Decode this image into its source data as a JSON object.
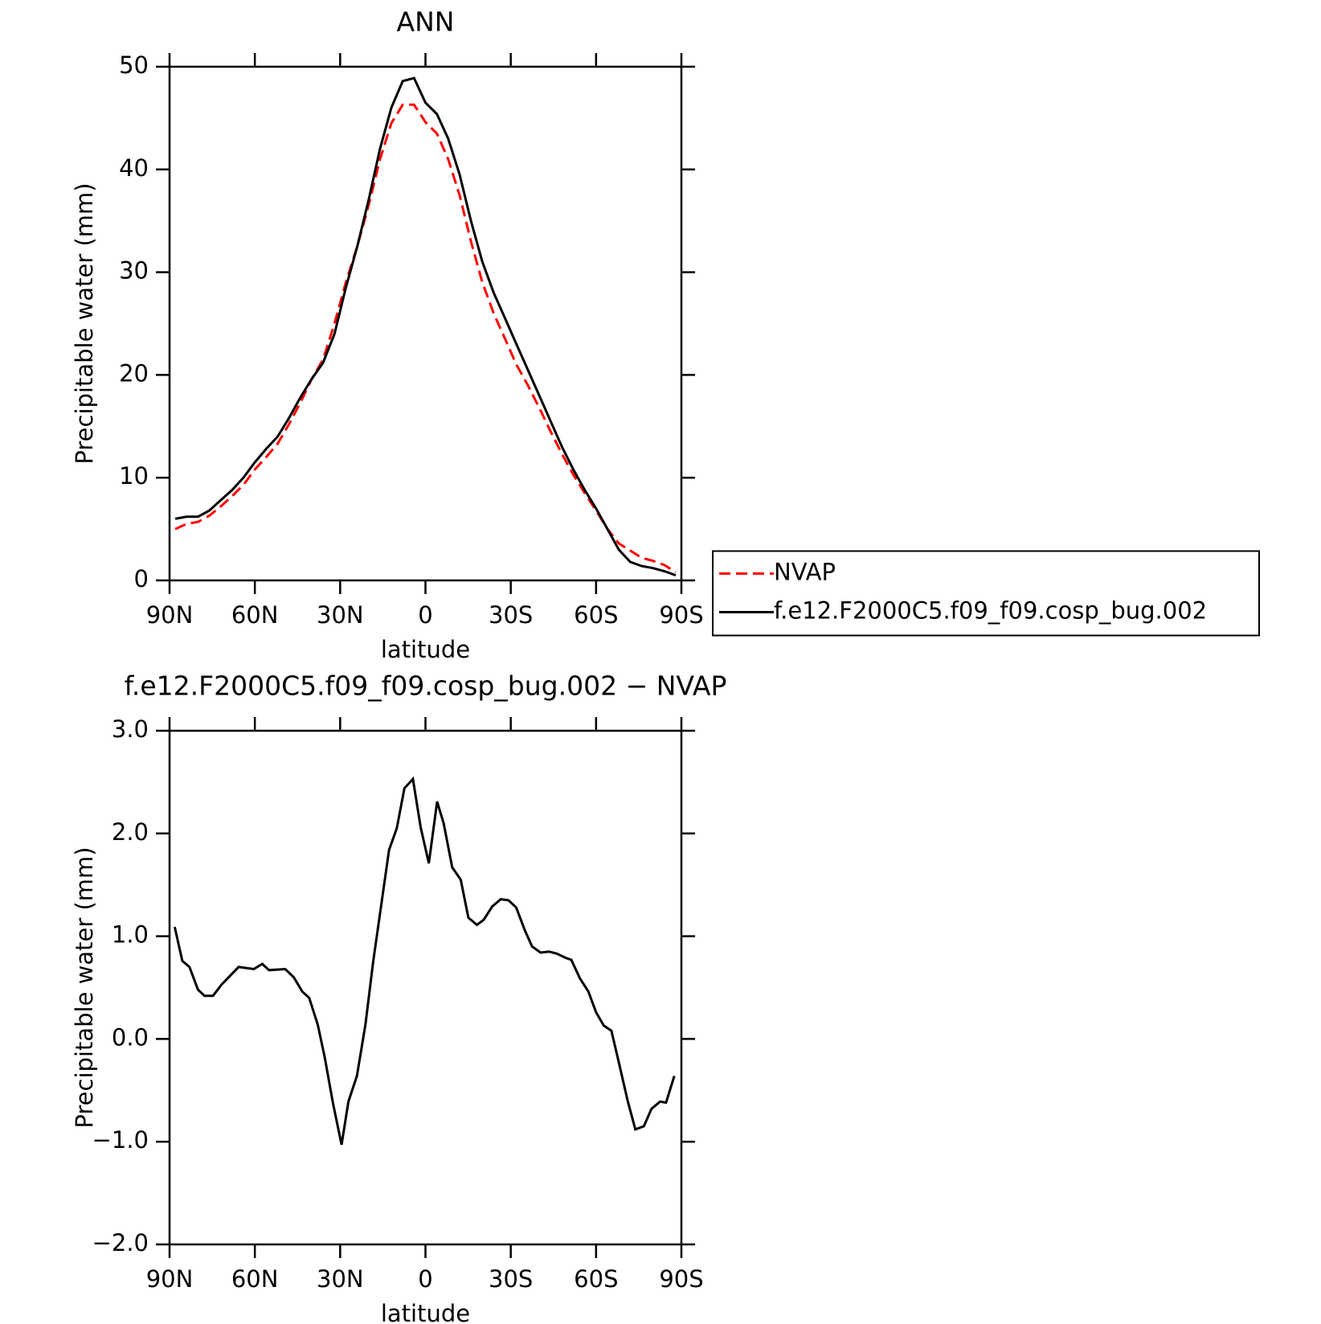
{
  "chart_data": [
    {
      "type": "line",
      "title": "ANN",
      "xlabel": "latitude",
      "ylabel": "Precipitable water (mm)",
      "x": [
        88,
        84,
        80,
        76,
        72,
        68,
        64,
        60,
        56,
        52,
        48,
        44,
        40,
        36,
        32,
        28,
        24,
        20,
        16,
        12,
        8,
        4,
        0,
        -4,
        -8,
        -12,
        -16,
        -20,
        -24,
        -28,
        -32,
        -36,
        -40,
        -44,
        -48,
        -52,
        -56,
        -60,
        -64,
        -68,
        -72,
        -76,
        -80,
        -84,
        -88
      ],
      "series": [
        {
          "name": "NVAP",
          "color": "#ff0000",
          "style": "dashed",
          "values": [
            5.0,
            5.5,
            5.7,
            6.3,
            7.2,
            8.2,
            9.3,
            10.8,
            12.0,
            13.3,
            15.2,
            17.3,
            19.6,
            21.5,
            25.0,
            29.0,
            32.5,
            36.5,
            41.0,
            44.5,
            46.3,
            46.3,
            44.6,
            43.5,
            41.0,
            37.5,
            33.0,
            29.0,
            26.0,
            23.5,
            21.0,
            19.0,
            16.8,
            14.5,
            12.3,
            10.3,
            8.5,
            6.8,
            5.0,
            3.6,
            2.9,
            2.2,
            1.9,
            1.5,
            0.8
          ]
        },
        {
          "name": "f.e12.F2000C5.f09_f09.cosp_bug.002",
          "color": "#000000",
          "style": "solid",
          "values": [
            6.0,
            6.2,
            6.2,
            6.8,
            7.8,
            8.8,
            10.0,
            11.5,
            12.8,
            14.0,
            15.8,
            17.8,
            19.6,
            21.2,
            24.0,
            28.5,
            32.5,
            37.0,
            42.0,
            46.0,
            48.6,
            48.9,
            46.5,
            45.4,
            43.0,
            39.5,
            35.0,
            31.0,
            28.0,
            25.5,
            23.0,
            20.5,
            18.0,
            15.5,
            13.0,
            10.8,
            8.8,
            7.0,
            5.0,
            3.0,
            1.8,
            1.4,
            1.2,
            0.9,
            0.5
          ]
        }
      ],
      "xlim": [
        90,
        -90
      ],
      "xticks": [
        {
          "value": 90,
          "label": "90N"
        },
        {
          "value": 60,
          "label": "60N"
        },
        {
          "value": 30,
          "label": "30N"
        },
        0,
        {
          "value": -30,
          "label": "30S"
        },
        {
          "value": -60,
          "label": "60S"
        },
        {
          "value": -90,
          "label": "90S"
        }
      ],
      "ylim": [
        0,
        50
      ],
      "yticks": [
        0,
        10,
        20,
        30,
        40,
        50
      ],
      "legend": "right"
    },
    {
      "type": "line",
      "title": "f.e12.F2000C5.f09_f09.cosp_bug.002 − NVAP",
      "xlabel": "latitude",
      "ylabel": "Precipitable water (mm)",
      "x": [
        88.2,
        85.5,
        83,
        80,
        77.7,
        74.7,
        71.7,
        65.7,
        60.4,
        57.4,
        55,
        49.3,
        46.3,
        43.3,
        40.9,
        37.9,
        35.5,
        32.5,
        29.5,
        27.1,
        24.1,
        21.1,
        18.4,
        12.8,
        10.1,
        7.4,
        4.4,
        1.7,
        -1.2,
        -4.1,
        -6.4,
        -9.4,
        -12.4,
        -15.1,
        -18.1,
        -20.5,
        -23.5,
        -26.5,
        -29.2,
        -31.9,
        -34.9,
        -37.5,
        -40.5,
        -43.5,
        -46.2,
        -49.2,
        -51.3,
        -54.3,
        -57.3,
        -60,
        -62.7,
        -65.4,
        -68.1,
        -71.1,
        -73.8,
        -76.8,
        -79.5,
        -82.5,
        -84.6,
        -87.5
      ],
      "series": [
        {
          "color": "#000000",
          "style": "solid",
          "values": [
            1.09,
            0.76,
            0.7,
            0.48,
            0.42,
            0.42,
            0.53,
            0.7,
            0.68,
            0.73,
            0.67,
            0.68,
            0.6,
            0.46,
            0.4,
            0.14,
            -0.17,
            -0.63,
            -1.03,
            -0.61,
            -0.36,
            0.14,
            0.75,
            1.84,
            2.05,
            2.44,
            2.53,
            2.06,
            1.71,
            2.31,
            2.1,
            1.67,
            1.55,
            1.18,
            1.11,
            1.16,
            1.29,
            1.36,
            1.35,
            1.28,
            1.06,
            0.9,
            0.84,
            0.85,
            0.83,
            0.79,
            0.77,
            0.59,
            0.46,
            0.26,
            0.13,
            0.08,
            -0.24,
            -0.6,
            -0.88,
            -0.85,
            -0.68,
            -0.61,
            -0.62,
            -0.36
          ]
        }
      ],
      "xlim": [
        90,
        -90
      ],
      "xticks": [
        {
          "value": 90,
          "label": "90N"
        },
        {
          "value": 60,
          "label": "60N"
        },
        {
          "value": 30,
          "label": "30N"
        },
        0,
        {
          "value": -30,
          "label": "30S"
        },
        {
          "value": -60,
          "label": "60S"
        },
        {
          "value": -90,
          "label": "90S"
        }
      ],
      "ylim": [
        -2,
        3
      ],
      "yticks": [
        {
          "value": -2,
          "label": "−2.0"
        },
        {
          "value": -1,
          "label": "−1.0"
        },
        {
          "value": 0,
          "label": "0.0"
        },
        {
          "value": 1,
          "label": "1.0"
        },
        {
          "value": 2,
          "label": "2.0"
        },
        {
          "value": 3,
          "label": "3.0"
        }
      ]
    }
  ]
}
